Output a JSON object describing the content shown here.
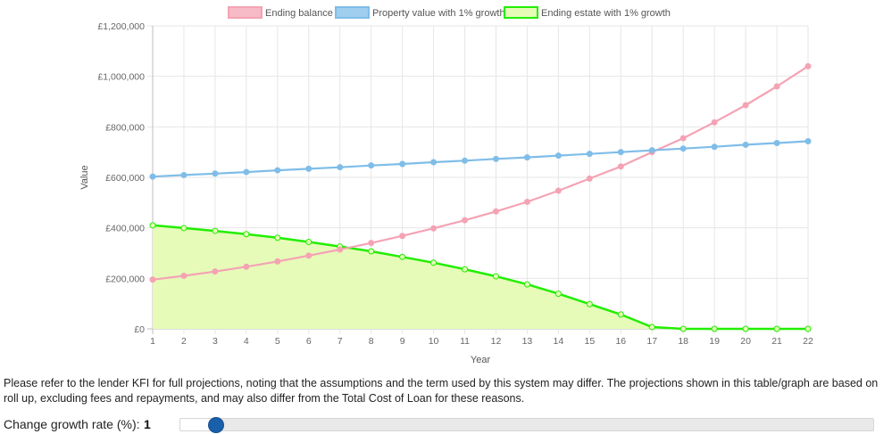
{
  "chart_data": {
    "type": "line",
    "title": "",
    "xlabel": "Year",
    "ylabel": "Value",
    "ylim": [
      0,
      1200000
    ],
    "y_ticks": [
      "£0",
      "£200,000",
      "£400,000",
      "£600,000",
      "£800,000",
      "£1,000,000",
      "£1,200,000"
    ],
    "grid": true,
    "legend_position": "top",
    "categories": [
      "1",
      "2",
      "3",
      "4",
      "5",
      "6",
      "7",
      "8",
      "9",
      "10",
      "11",
      "12",
      "13",
      "14",
      "15",
      "16",
      "17",
      "18",
      "19",
      "20",
      "21",
      "22"
    ],
    "series": [
      {
        "name": "Ending balance",
        "color": "#f4a3b4",
        "fill": false,
        "values": [
          195000,
          210000,
          227000,
          246000,
          267000,
          290000,
          314000,
          340000,
          368000,
          398000,
          430000,
          465000,
          503000,
          547000,
          595000,
          643000,
          700000,
          755000,
          818000,
          886000,
          960000,
          1040000
        ]
      },
      {
        "name": "Property value with 1% growth",
        "color": "#7fbde8",
        "fill": false,
        "values": [
          603000,
          609000,
          615000,
          621000,
          628000,
          634000,
          640000,
          647000,
          653000,
          660000,
          666000,
          673000,
          679000,
          686000,
          693000,
          700000,
          707000,
          714000,
          721000,
          729000,
          736000,
          743000
        ]
      },
      {
        "name": "Ending estate with 1% growth",
        "color": "#22ee00",
        "fill": true,
        "fill_color": "#e6fbb8",
        "values": [
          410000,
          399000,
          388000,
          375000,
          361000,
          344000,
          326000,
          307000,
          285000,
          262000,
          236000,
          208000,
          176000,
          139000,
          98000,
          57000,
          7000,
          0,
          0,
          0,
          0,
          0
        ]
      }
    ]
  },
  "note": "Please refer to the lender KFI for full projections, noting that the assumptions and the term used by this system may differ. The projections shown in this table/graph are based on roll up, excluding fees and repayments, and may also differ from the Total Cost of Loan for these reasons.",
  "growth": {
    "label": "Change growth rate (%):",
    "value": "1",
    "slider_fraction": 0.05
  }
}
